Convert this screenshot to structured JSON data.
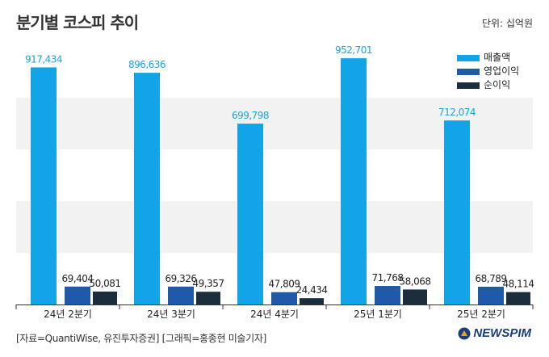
{
  "title": "분기별 코스피 추이",
  "unit": "단위: 십억원",
  "source": "[자료=QuantiWise, 유진투자증권] [그래픽=홍종현 미술기자]",
  "logo_text": "NEWSPIM",
  "colors": {
    "revenue": "#12a4e6",
    "operating": "#1f5aa8",
    "net": "#1c2d3e",
    "revenue_label": "#1aa3e0",
    "band": "#f2f2f2",
    "axis": "#333333"
  },
  "chart_data": {
    "type": "bar",
    "title": "분기별 코스피 추이",
    "categories": [
      "24년 2분기",
      "24년 3분기",
      "24년 4분기",
      "25년 1분기",
      "25년 2분기"
    ],
    "series": [
      {
        "name": "매출액",
        "values": [
          917434,
          896636,
          699798,
          952701,
          712074
        ]
      },
      {
        "name": "영업이익",
        "values": [
          69404,
          69326,
          47809,
          71768,
          68789
        ]
      },
      {
        "name": "순이익",
        "values": [
          50081,
          49357,
          24434,
          58068,
          48114
        ]
      }
    ],
    "value_labels": [
      [
        "917,434",
        "896,636",
        "699,798",
        "952,701",
        "712,074"
      ],
      [
        "69,404",
        "69,326",
        "47,809",
        "71,768",
        "68,789"
      ],
      [
        "50,081",
        "49,357",
        "24,434",
        "58,068",
        "48,114"
      ]
    ],
    "ylim": [
      0,
      1000000
    ],
    "grid": "alternating horizontal bands",
    "legend_position": "top-right"
  }
}
